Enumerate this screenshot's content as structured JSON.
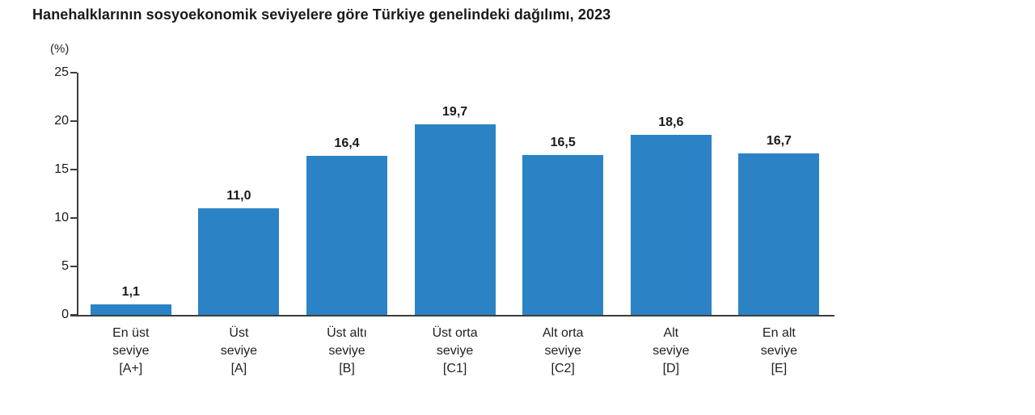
{
  "title": "Hanehalklarının sosyoekonomik seviyelere göre Türkiye genelindeki dağılımı, 2023",
  "chart_data": {
    "type": "bar",
    "title": "Hanehalklarının sosyoekonomik seviyelere göre Türkiye genelindeki dağılımı, 2023",
    "unit_label": "(%)",
    "ylabel": "(%)",
    "xlabel": "",
    "ylim": [
      0,
      25
    ],
    "yticks": [
      0,
      5,
      10,
      15,
      20,
      25
    ],
    "grid": false,
    "legend": "none",
    "bar_color": "#2b83c5",
    "categories": [
      "En üst seviye [A+]",
      "Üst seviye [A]",
      "Üst altı seviye [B]",
      "Üst orta seviye [C1]",
      "Alt orta seviye [C2]",
      "Alt seviye [D]",
      "En alt seviye [E]"
    ],
    "category_lines": [
      "En üst\nseviye\n[A+]",
      "Üst\nseviye\n[A]",
      "Üst altı\nseviye\n[B]",
      "Üst orta\nseviye\n[C1]",
      "Alt orta\nseviye\n[C2]",
      "Alt\nseviye\n[D]",
      "En alt\nseviye\n[E]"
    ],
    "values": [
      1.1,
      11.0,
      16.4,
      19.7,
      16.5,
      18.6,
      16.7
    ],
    "value_labels": [
      "1,1",
      "11,0",
      "16,4",
      "19,7",
      "16,5",
      "18,6",
      "16,7"
    ]
  }
}
